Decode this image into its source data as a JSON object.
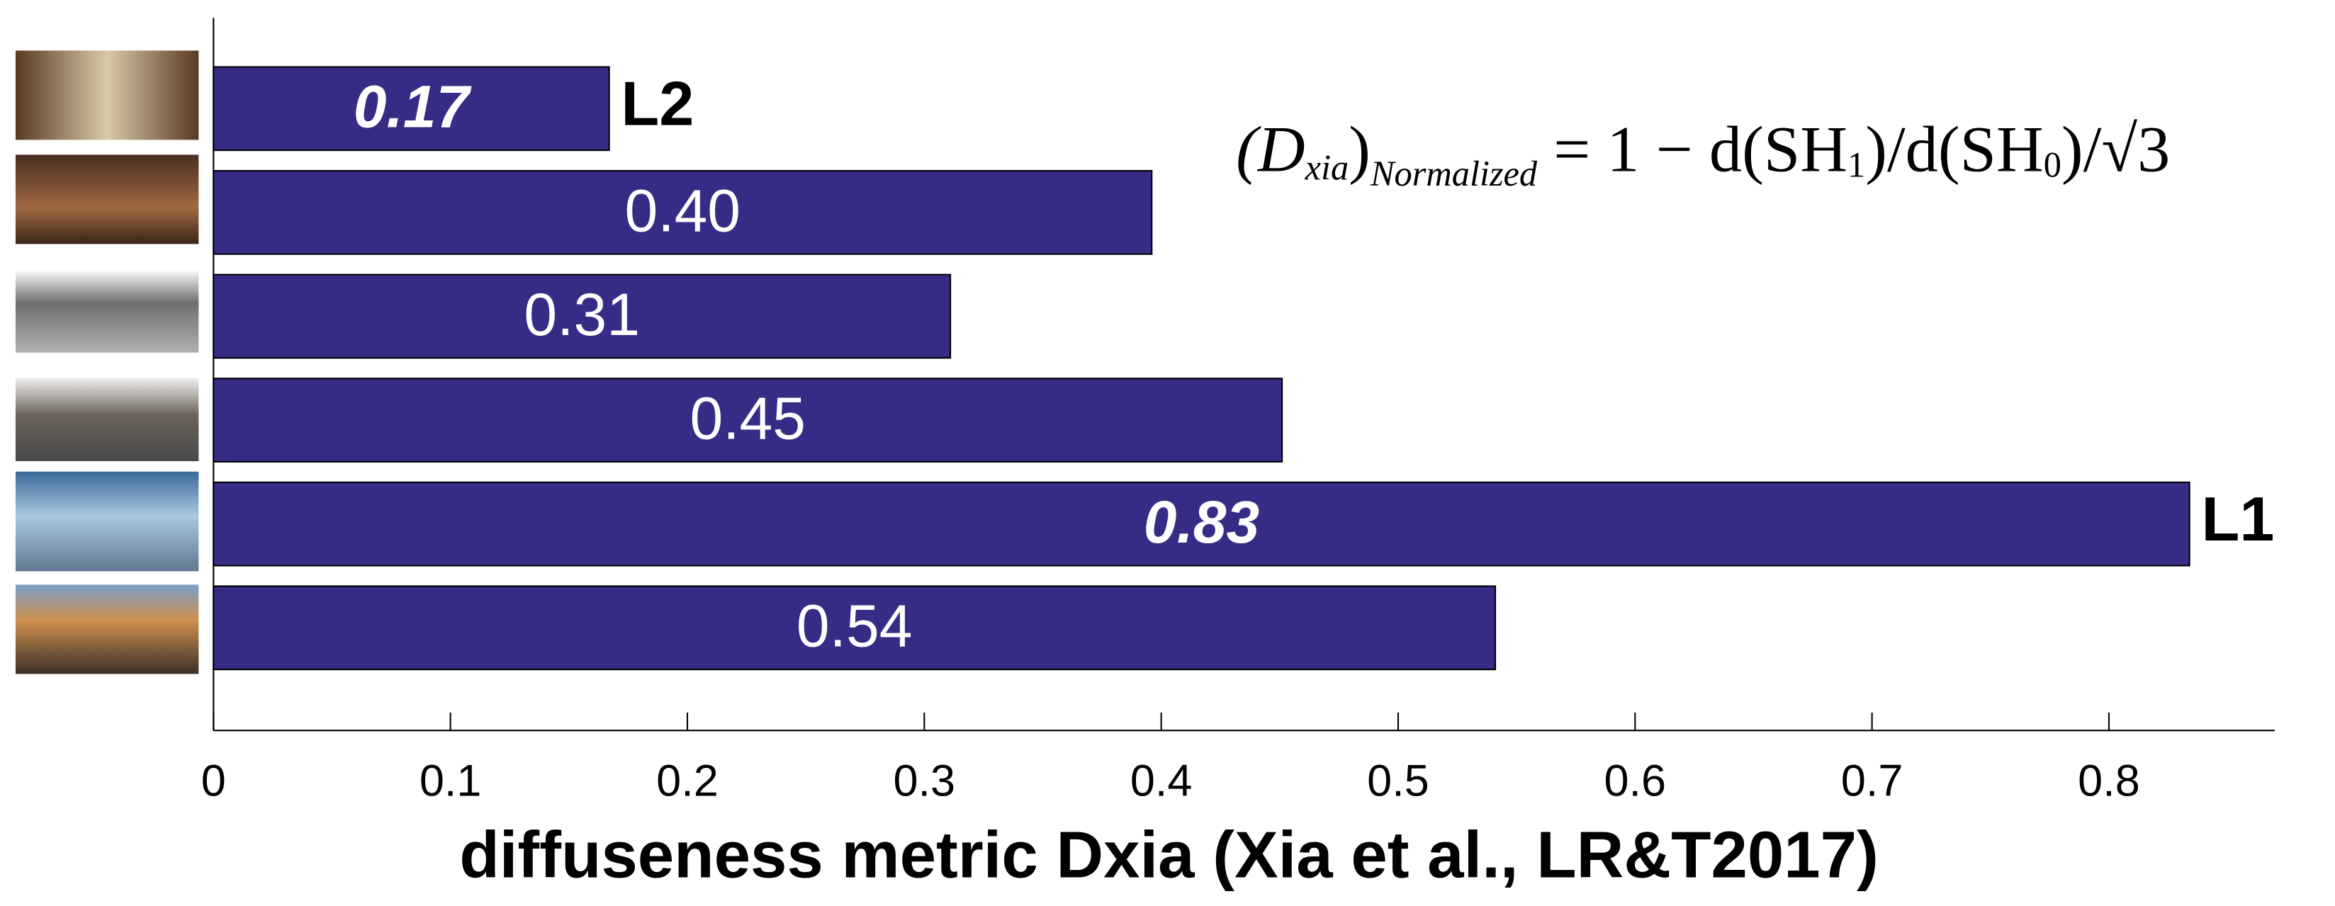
{
  "chart_data": {
    "type": "bar",
    "orientation": "horizontal",
    "categories": [
      null,
      null,
      null,
      null,
      null,
      null
    ],
    "values": [
      0.167,
      0.396,
      0.311,
      0.451,
      0.834,
      0.541
    ],
    "value_labels": [
      "0.17",
      "0.40",
      "0.31",
      "0.45",
      "0.83",
      "0.54"
    ],
    "bar_annotations": [
      "L2",
      null,
      null,
      null,
      "L1",
      null
    ],
    "color": "#362c86",
    "xlim": [
      0,
      0.87
    ],
    "xticks": [
      0,
      0.1,
      0.2,
      0.3,
      0.4,
      0.5,
      0.6,
      0.7,
      0.8
    ],
    "xlabel": "diffuseness metric Dxia (Xia et al., LR&T2017)",
    "formula": [
      "(D",
      "xia",
      ")",
      "Normalized",
      " = 1 − d(SH",
      "1",
      ")/d(SH",
      "0",
      ")/√3"
    ]
  }
}
